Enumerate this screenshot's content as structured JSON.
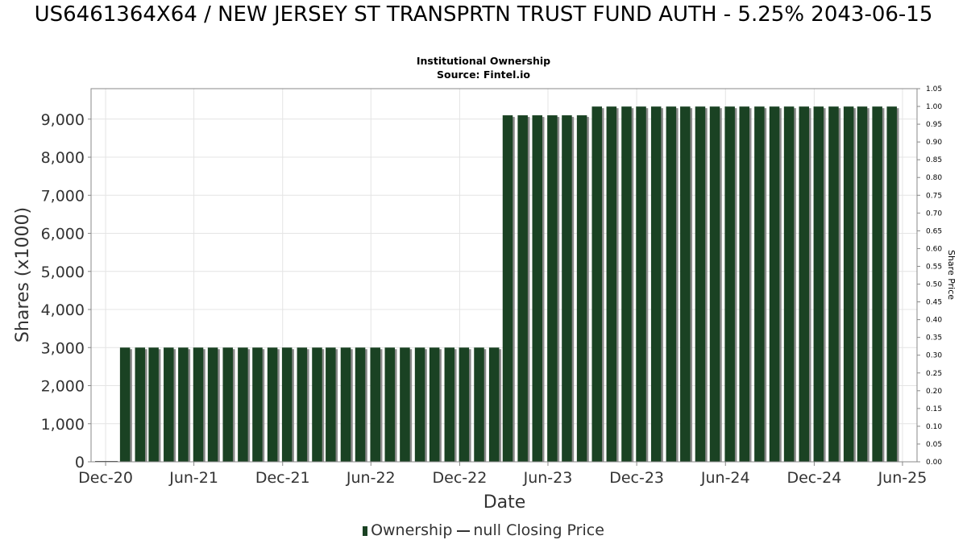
{
  "header": {
    "title": "US6461364X64 / NEW JERSEY ST TRANSPRTN TRUST FUND AUTH - 5.25% 2043-06-15",
    "subtitle_line1": "Institutional Ownership",
    "subtitle_line2": "Source: Fintel.io"
  },
  "legend": {
    "ownership_label": "Ownership",
    "price_label": "null Closing Price"
  },
  "colors": {
    "bar_fill": "#1a4223",
    "bar_shadow": "#8a8a8a",
    "grid": "#e4e4e4"
  },
  "chart_data": {
    "type": "bar",
    "xlabel": "Date",
    "ylabel": "Shares (x1000)",
    "y2label": "Share Price",
    "ylim": [
      0,
      9800
    ],
    "y2lim": [
      0,
      1.05
    ],
    "xlim": [
      "2020-11-01",
      "2025-07-01"
    ],
    "yticks": [
      "0",
      "1,000",
      "2,000",
      "3,000",
      "4,000",
      "5,000",
      "6,000",
      "7,000",
      "8,000",
      "9,000"
    ],
    "y2ticks": [
      "0.00",
      "0.05",
      "0.10",
      "0.15",
      "0.20",
      "0.25",
      "0.30",
      "0.35",
      "0.40",
      "0.45",
      "0.50",
      "0.55",
      "0.60",
      "0.65",
      "0.70",
      "0.75",
      "0.80",
      "0.85",
      "0.90",
      "0.95",
      "1.00",
      "1.05"
    ],
    "xticks": [
      {
        "label": "Dec-20",
        "date": "2020-12-01"
      },
      {
        "label": "Jun-21",
        "date": "2021-06-01"
      },
      {
        "label": "Dec-21",
        "date": "2021-12-01"
      },
      {
        "label": "Jun-22",
        "date": "2022-06-01"
      },
      {
        "label": "Dec-22",
        "date": "2022-12-01"
      },
      {
        "label": "Jun-23",
        "date": "2023-06-01"
      },
      {
        "label": "Dec-23",
        "date": "2023-12-01"
      },
      {
        "label": "Jun-24",
        "date": "2024-06-01"
      },
      {
        "label": "Dec-24",
        "date": "2024-12-01"
      },
      {
        "label": "Jun-25",
        "date": "2025-06-01"
      }
    ],
    "grid": true,
    "legend_position": "bottom",
    "series": [
      {
        "name": "Ownership",
        "points": [
          {
            "date": "2021-01-10",
            "value": 3000
          },
          {
            "date": "2021-02-10",
            "value": 3000
          },
          {
            "date": "2021-03-10",
            "value": 3000
          },
          {
            "date": "2021-04-10",
            "value": 3000
          },
          {
            "date": "2021-05-10",
            "value": 3000
          },
          {
            "date": "2021-06-10",
            "value": 3000
          },
          {
            "date": "2021-07-10",
            "value": 3000
          },
          {
            "date": "2021-08-10",
            "value": 3000
          },
          {
            "date": "2021-09-10",
            "value": 3000
          },
          {
            "date": "2021-10-10",
            "value": 3000
          },
          {
            "date": "2021-11-10",
            "value": 3000
          },
          {
            "date": "2021-12-10",
            "value": 3000
          },
          {
            "date": "2022-01-10",
            "value": 3000
          },
          {
            "date": "2022-02-10",
            "value": 3000
          },
          {
            "date": "2022-03-10",
            "value": 3000
          },
          {
            "date": "2022-04-10",
            "value": 3000
          },
          {
            "date": "2022-05-10",
            "value": 3000
          },
          {
            "date": "2022-06-10",
            "value": 3000
          },
          {
            "date": "2022-07-10",
            "value": 3000
          },
          {
            "date": "2022-08-10",
            "value": 3000
          },
          {
            "date": "2022-09-10",
            "value": 3000
          },
          {
            "date": "2022-10-10",
            "value": 3000
          },
          {
            "date": "2022-11-10",
            "value": 3000
          },
          {
            "date": "2022-12-10",
            "value": 3000
          },
          {
            "date": "2023-01-10",
            "value": 3000
          },
          {
            "date": "2023-02-10",
            "value": 3000
          },
          {
            "date": "2023-03-10",
            "value": 9100
          },
          {
            "date": "2023-04-10",
            "value": 9100
          },
          {
            "date": "2023-05-10",
            "value": 9100
          },
          {
            "date": "2023-06-10",
            "value": 9100
          },
          {
            "date": "2023-07-10",
            "value": 9100
          },
          {
            "date": "2023-08-10",
            "value": 9100
          },
          {
            "date": "2023-09-10",
            "value": 9330
          },
          {
            "date": "2023-10-10",
            "value": 9330
          },
          {
            "date": "2023-11-10",
            "value": 9330
          },
          {
            "date": "2023-12-10",
            "value": 9330
          },
          {
            "date": "2024-01-10",
            "value": 9330
          },
          {
            "date": "2024-02-10",
            "value": 9330
          },
          {
            "date": "2024-03-10",
            "value": 9330
          },
          {
            "date": "2024-04-10",
            "value": 9330
          },
          {
            "date": "2024-05-10",
            "value": 9330
          },
          {
            "date": "2024-06-10",
            "value": 9330
          },
          {
            "date": "2024-07-10",
            "value": 9330
          },
          {
            "date": "2024-08-10",
            "value": 9330
          },
          {
            "date": "2024-09-10",
            "value": 9330
          },
          {
            "date": "2024-10-10",
            "value": 9330
          },
          {
            "date": "2024-11-10",
            "value": 9330
          },
          {
            "date": "2024-12-10",
            "value": 9330
          },
          {
            "date": "2025-01-10",
            "value": 9330
          },
          {
            "date": "2025-02-10",
            "value": 9330
          },
          {
            "date": "2025-03-10",
            "value": 9330
          },
          {
            "date": "2025-04-10",
            "value": 9330
          },
          {
            "date": "2025-05-10",
            "value": 9330
          }
        ]
      },
      {
        "name": "null Closing Price",
        "points": []
      }
    ]
  }
}
